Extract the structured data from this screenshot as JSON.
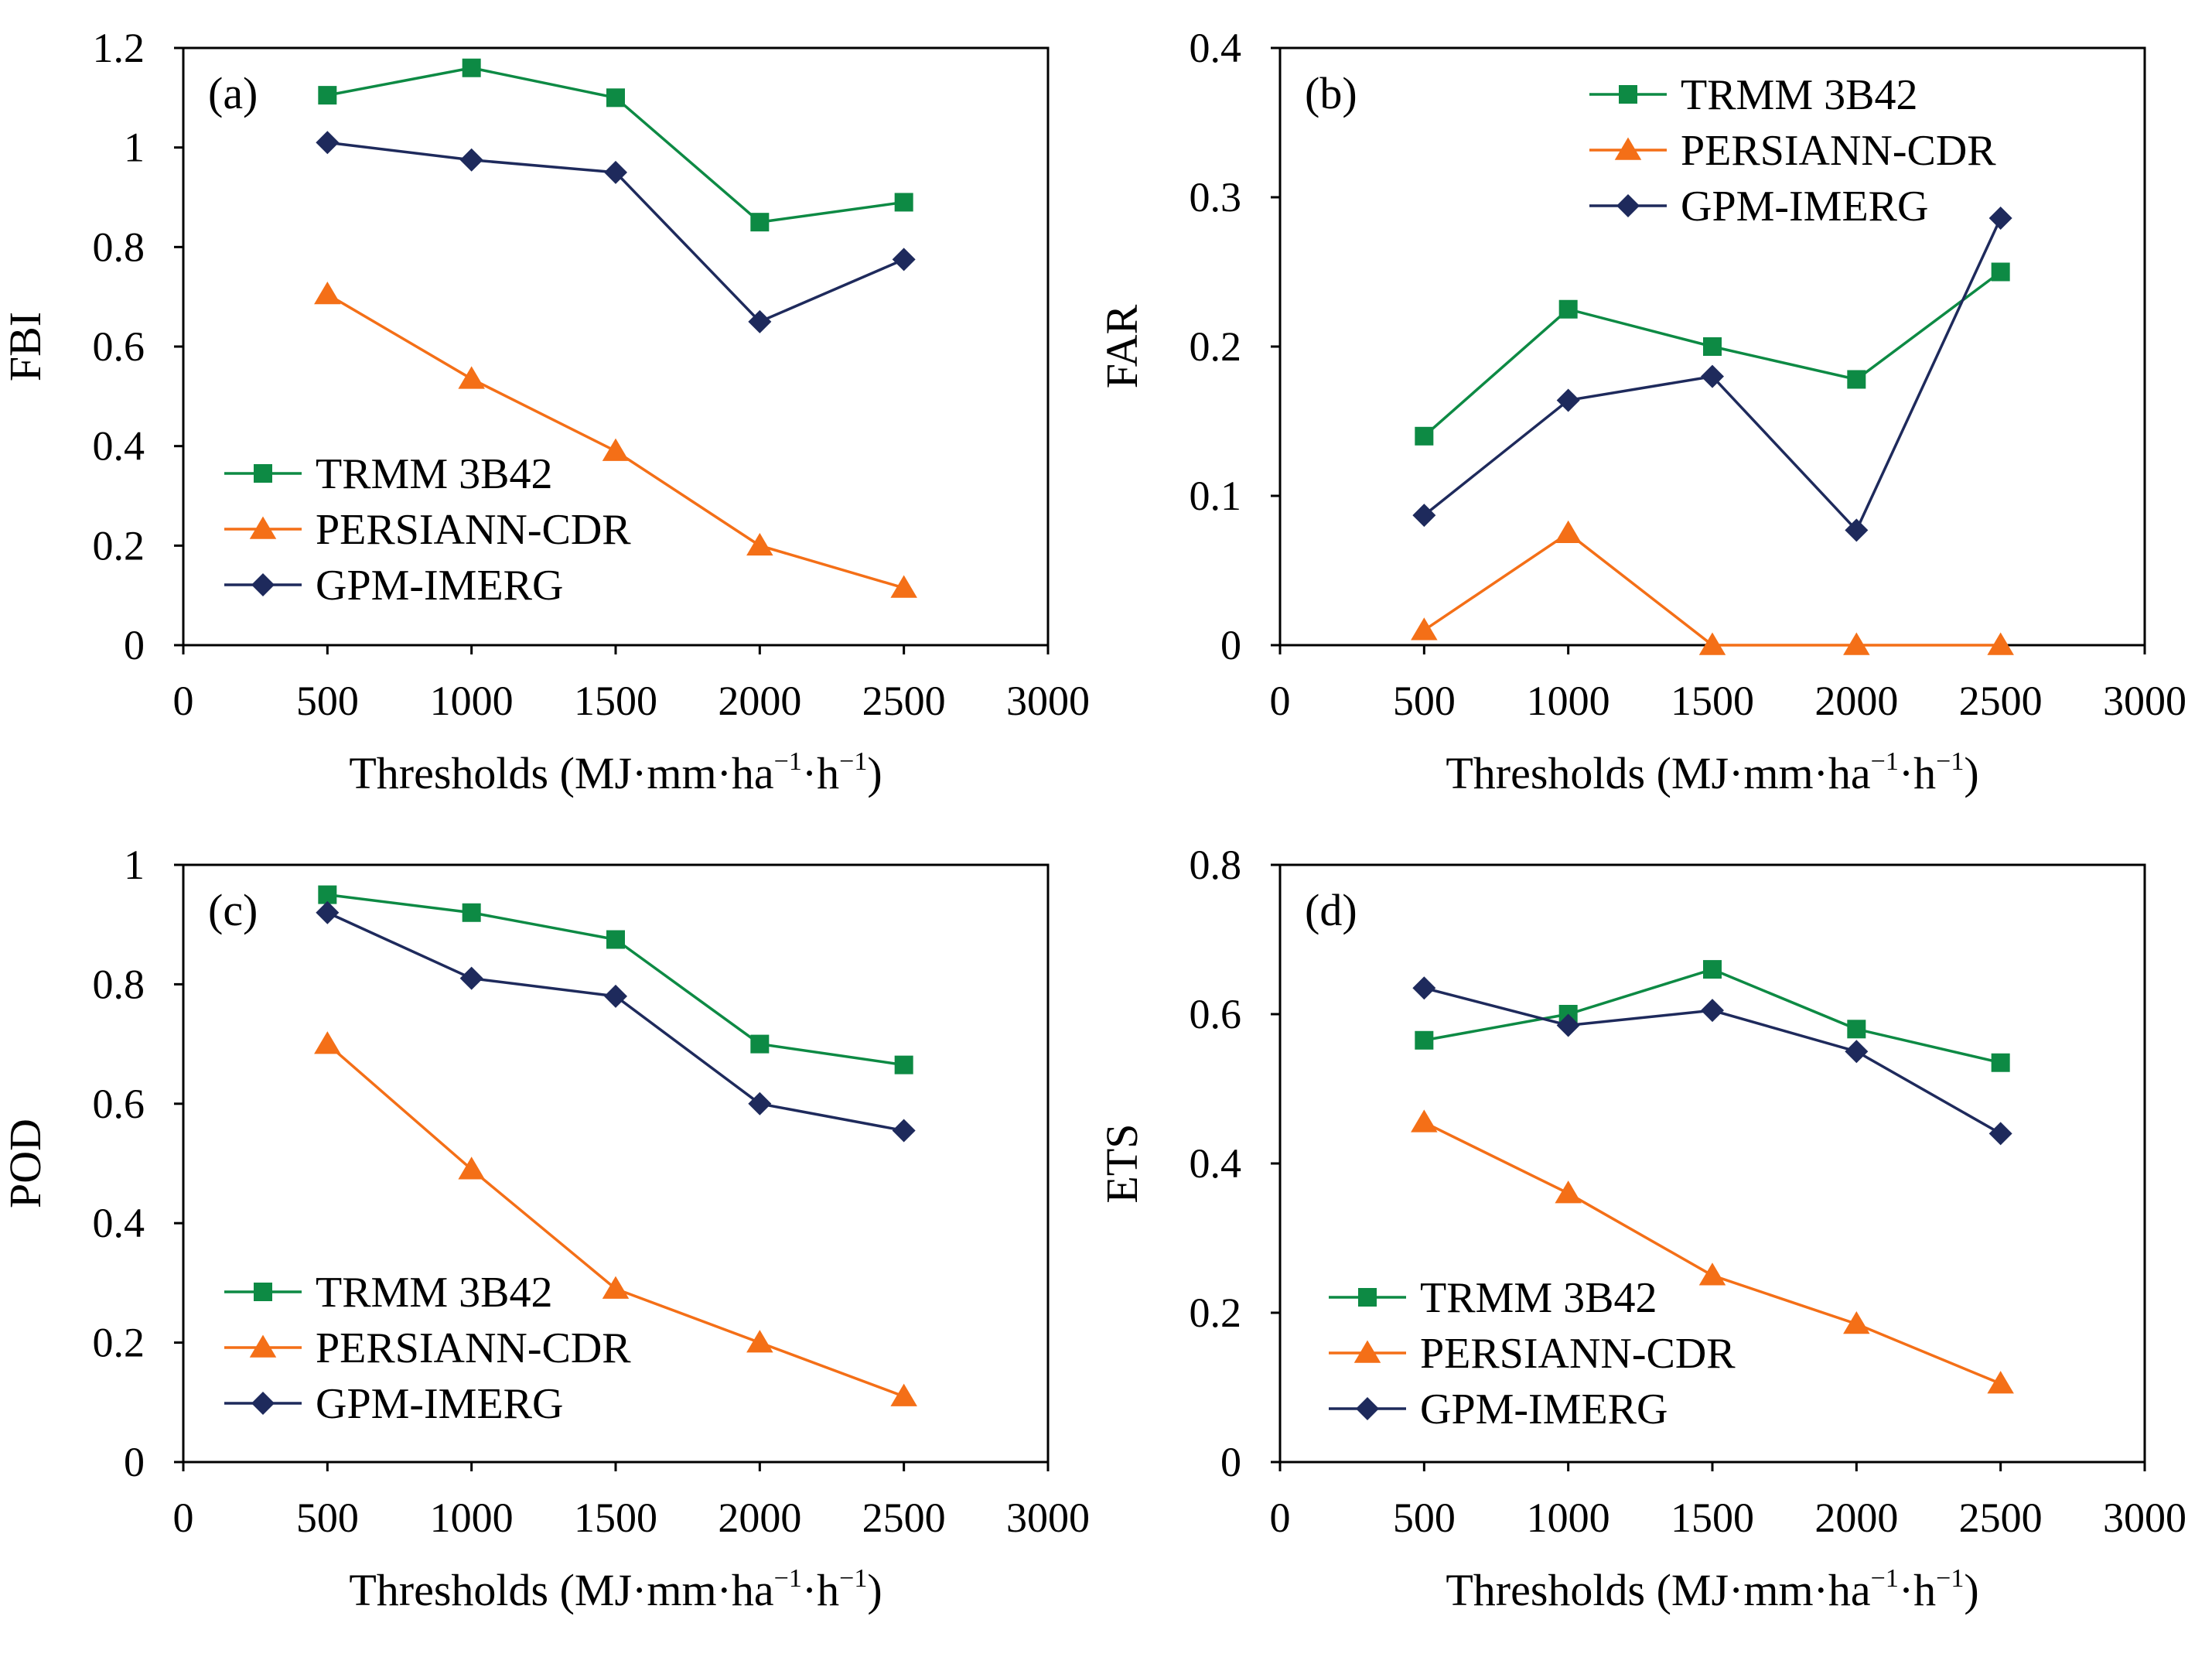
{
  "colors": {
    "trmm": "#0d8a44",
    "persiann": "#f46f17",
    "gpm": "#1e2a5c"
  },
  "chart_data": [
    {
      "type": "line",
      "panel_label": "(a)",
      "ylabel": "FBI",
      "xlabel": {
        "main": "Thresholds (MJ·mm·ha",
        "sup1": "−1",
        "mid": "·h",
        "sup2": "−1",
        "end": ")"
      },
      "xlim": [
        0,
        3000
      ],
      "ylim": [
        0,
        1.2
      ],
      "x_ticks": [
        "0",
        "500",
        "1000",
        "1500",
        "2000",
        "2500",
        "3000"
      ],
      "y_ticks": [
        "0",
        "0.2",
        "0.4",
        "0.6",
        "0.8",
        "1",
        "1.2"
      ],
      "x": [
        500,
        1000,
        1500,
        2000,
        2500
      ],
      "legend_position": "bottom-left",
      "series": [
        {
          "name": "TRMM 3B42",
          "marker": "square",
          "values": [
            1.105,
            1.16,
            1.1,
            0.85,
            0.89
          ]
        },
        {
          "name": "PERSIANN-CDR",
          "marker": "triangle",
          "values": [
            0.705,
            0.535,
            0.39,
            0.2,
            0.115
          ]
        },
        {
          "name": "GPM-IMERG",
          "marker": "diamond",
          "values": [
            1.01,
            0.975,
            0.95,
            0.65,
            0.775
          ]
        }
      ]
    },
    {
      "type": "line",
      "panel_label": "(b)",
      "ylabel": "FAR",
      "xlabel": {
        "main": "Thresholds (MJ·mm·ha",
        "sup1": "−1",
        "mid": "·h",
        "sup2": "−1",
        "end": ")"
      },
      "xlim": [
        0,
        3000
      ],
      "ylim": [
        0,
        0.4
      ],
      "x_ticks": [
        "0",
        "500",
        "1000",
        "1500",
        "2000",
        "2500",
        "3000"
      ],
      "y_ticks": [
        "0",
        "0.1",
        "0.2",
        "0.3",
        "0.4"
      ],
      "x": [
        500,
        1000,
        1500,
        2000,
        2500
      ],
      "legend_position": "top-center",
      "series": [
        {
          "name": "TRMM 3B42",
          "marker": "square",
          "values": [
            0.14,
            0.225,
            0.2,
            0.178,
            0.25
          ]
        },
        {
          "name": "PERSIANN-CDR",
          "marker": "triangle",
          "values": [
            0.01,
            0.075,
            0.0,
            0.0,
            0.0
          ]
        },
        {
          "name": "GPM-IMERG",
          "marker": "diamond",
          "values": [
            0.087,
            0.164,
            0.18,
            0.077,
            0.286
          ]
        }
      ]
    },
    {
      "type": "line",
      "panel_label": "(c)",
      "ylabel": "POD",
      "xlabel": {
        "main": "Thresholds (MJ·mm·ha",
        "sup1": "−1",
        "mid": "·h",
        "sup2": "−1",
        "end": ")"
      },
      "xlim": [
        0,
        3000
      ],
      "ylim": [
        0,
        1
      ],
      "x_ticks": [
        "0",
        "500",
        "1000",
        "1500",
        "2000",
        "2500",
        "3000"
      ],
      "y_ticks": [
        "0",
        "0.2",
        "0.4",
        "0.6",
        "0.8",
        "1"
      ],
      "x": [
        500,
        1000,
        1500,
        2000,
        2500
      ],
      "legend_position": "bottom-left",
      "series": [
        {
          "name": "TRMM 3B42",
          "marker": "square",
          "values": [
            0.95,
            0.92,
            0.875,
            0.7,
            0.665
          ]
        },
        {
          "name": "PERSIANN-CDR",
          "marker": "triangle",
          "values": [
            0.7,
            0.49,
            0.29,
            0.2,
            0.11
          ]
        },
        {
          "name": "GPM-IMERG",
          "marker": "diamond",
          "values": [
            0.92,
            0.81,
            0.78,
            0.6,
            0.555
          ]
        }
      ]
    },
    {
      "type": "line",
      "panel_label": "(d)",
      "ylabel": "ETS",
      "xlabel": {
        "main": "Thresholds (MJ·mm·ha",
        "sup1": "−1",
        "mid": "·h",
        "sup2": "−1",
        "end": ")"
      },
      "xlim": [
        0,
        3000
      ],
      "ylim": [
        0,
        0.8
      ],
      "x_ticks": [
        "0",
        "500",
        "1000",
        "1500",
        "2000",
        "2500",
        "3000"
      ],
      "y_ticks": [
        "0",
        "0.2",
        "0.4",
        "0.6",
        "0.8"
      ],
      "x": [
        500,
        1000,
        1500,
        2000,
        2500
      ],
      "legend_position": "bottom-left",
      "series": [
        {
          "name": "TRMM 3B42",
          "marker": "square",
          "values": [
            0.565,
            0.6,
            0.66,
            0.58,
            0.535
          ]
        },
        {
          "name": "PERSIANN-CDR",
          "marker": "triangle",
          "values": [
            0.455,
            0.36,
            0.25,
            0.185,
            0.105
          ]
        },
        {
          "name": "GPM-IMERG",
          "marker": "diamond",
          "values": [
            0.635,
            0.585,
            0.605,
            0.55,
            0.44
          ]
        }
      ]
    }
  ]
}
